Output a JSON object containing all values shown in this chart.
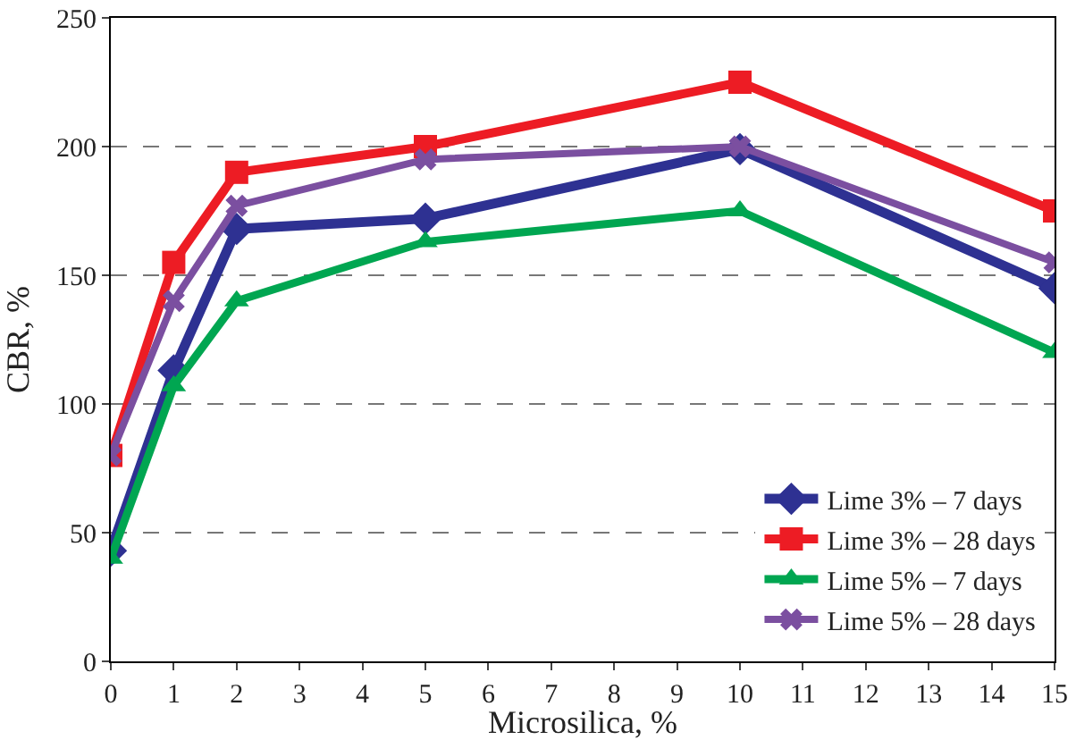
{
  "chart_data": {
    "type": "line",
    "xlabel": "Microsilica, %",
    "ylabel": "CBR, %",
    "x": [
      0,
      1,
      2,
      5,
      10,
      15
    ],
    "xlim": [
      0,
      15
    ],
    "xticks": [
      0,
      1,
      2,
      3,
      4,
      5,
      6,
      7,
      8,
      9,
      10,
      11,
      12,
      13,
      14,
      15
    ],
    "ylim": [
      0,
      250
    ],
    "yticks": [
      0,
      50,
      100,
      150,
      200,
      250
    ],
    "grid": "y",
    "legend": "bottom right",
    "line_style": "solid",
    "series": [
      {
        "name": "Lime 3% – 7 days",
        "color": "#2e3192",
        "marker": "diamond",
        "values": [
          43,
          113,
          168,
          172,
          199,
          145
        ]
      },
      {
        "name": "Lime 3% – 28 days",
        "color": "#ed1c24",
        "marker": "square",
        "values": [
          80,
          155,
          190,
          200,
          225,
          175
        ]
      },
      {
        "name": "Lime 5% – 7 days",
        "color": "#00a651",
        "marker": "triangle",
        "values": [
          40,
          107,
          140,
          163,
          175,
          120
        ]
      },
      {
        "name": "Lime 5% – 28 days",
        "color": "#7b4fa0",
        "marker": "cross",
        "values": [
          80,
          140,
          177,
          195,
          200,
          155
        ]
      }
    ]
  }
}
